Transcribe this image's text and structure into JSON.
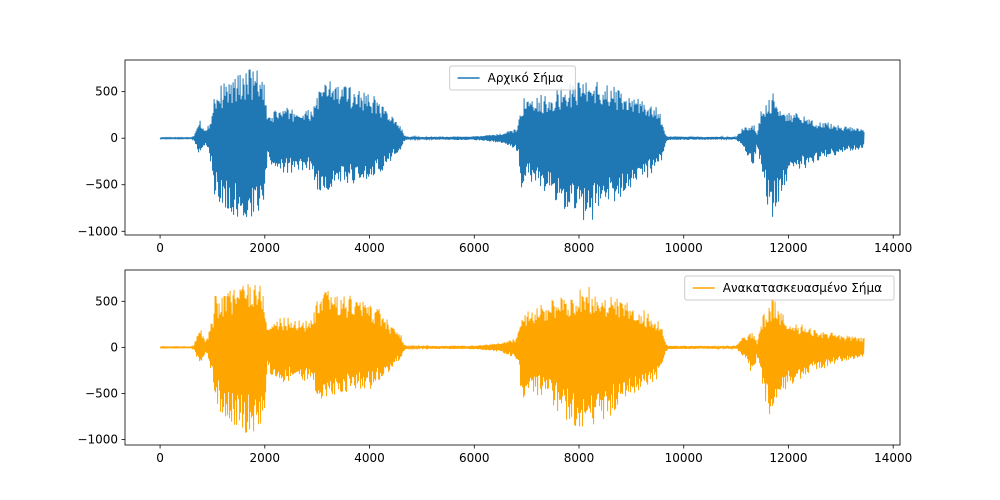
{
  "chart_data": [
    {
      "type": "line",
      "xlim": [
        -670,
        14130
      ],
      "ylim": [
        -1040,
        840
      ],
      "xticks": [
        0,
        2000,
        4000,
        6000,
        8000,
        10000,
        12000,
        14000
      ],
      "yticks": [
        -1000,
        -500,
        0,
        500
      ],
      "legend_position": "top-center",
      "series": [
        {
          "name": "Αρχικό Σήμα",
          "color": "#1f77b4",
          "envelope": {
            "x": [
              0,
              600,
              650,
              700,
              750,
              800,
              850,
              900,
              1000,
              1050,
              1100,
              1200,
              1400,
              1600,
              1800,
              1900,
              2000,
              2050,
              2100,
              2200,
              2400,
              2600,
              2900,
              3000,
              3100,
              3200,
              3300,
              3400,
              3600,
              3800,
              4000,
              4200,
              4400,
              4500,
              4600,
              4650,
              4700,
              4800,
              5000,
              5500,
              6000,
              6200,
              6500,
              6800,
              6850,
              6900,
              6950,
              7000,
              7200,
              7500,
              7800,
              8000,
              8200,
              8500,
              8800,
              9000,
              9200,
              9400,
              9500,
              9600,
              9650,
              9700,
              10000,
              10500,
              11000,
              11100,
              11200,
              11300,
              11350,
              11400,
              11500,
              11600,
              11700,
              11800,
              12000,
              12500,
              13000,
              13450
            ],
            "upper": [
              6,
              6,
              30,
              150,
              230,
              170,
              90,
              100,
              320,
              580,
              520,
              600,
              650,
              740,
              750,
              720,
              560,
              200,
              260,
              320,
              330,
              310,
              300,
              520,
              550,
              660,
              640,
              580,
              570,
              550,
              490,
              410,
              260,
              190,
              140,
              40,
              20,
              10,
              15,
              18,
              20,
              30,
              50,
              100,
              200,
              330,
              480,
              400,
              450,
              520,
              580,
              640,
              660,
              600,
              520,
              460,
              420,
              350,
              330,
              200,
              50,
              20,
              18,
              15,
              15,
              100,
              120,
              170,
              140,
              50,
              360,
              380,
              520,
              420,
              300,
              200,
              140,
              100
            ],
            "lower": [
              -6,
              -6,
              -30,
              -120,
              -200,
              -150,
              -80,
              -90,
              -350,
              -680,
              -620,
              -800,
              -850,
              -940,
              -900,
              -850,
              -650,
              -210,
              -300,
              -370,
              -380,
              -370,
              -360,
              -560,
              -590,
              -560,
              -560,
              -500,
              -500,
              -480,
              -460,
              -380,
              -250,
              -180,
              -130,
              -40,
              -20,
              -10,
              -15,
              -18,
              -20,
              -30,
              -50,
              -120,
              -220,
              -580,
              -560,
              -460,
              -520,
              -640,
              -820,
              -900,
              -900,
              -800,
              -640,
              -520,
              -480,
              -380,
              -350,
              -240,
              -60,
              -20,
              -18,
              -15,
              -15,
              -70,
              -160,
              -300,
              -260,
              -80,
              -400,
              -720,
              -860,
              -700,
              -420,
              -270,
              -160,
              -110
            ]
          }
        }
      ]
    },
    {
      "type": "line",
      "xlim": [
        -670,
        14130
      ],
      "ylim": [
        -1060,
        840
      ],
      "xticks": [
        0,
        2000,
        4000,
        6000,
        8000,
        10000,
        12000,
        14000
      ],
      "yticks": [
        -1000,
        -500,
        0,
        500
      ],
      "legend_position": "top-right",
      "series": [
        {
          "name": "Ανακατασκευασμένο Σήμα",
          "color": "#ffa500",
          "envelope": {
            "x": [
              0,
              600,
              650,
              700,
              750,
              800,
              850,
              900,
              1000,
              1050,
              1100,
              1200,
              1400,
              1600,
              1800,
              1900,
              2000,
              2050,
              2100,
              2200,
              2400,
              2600,
              2900,
              3000,
              3100,
              3200,
              3300,
              3400,
              3600,
              3800,
              4000,
              4200,
              4400,
              4500,
              4600,
              4650,
              4700,
              4800,
              5000,
              5500,
              6000,
              6200,
              6500,
              6800,
              6850,
              6900,
              6950,
              7000,
              7200,
              7500,
              7800,
              8000,
              8200,
              8500,
              8800,
              9000,
              9200,
              9400,
              9500,
              9600,
              9650,
              9700,
              10000,
              10500,
              11000,
              11100,
              11200,
              11300,
              11350,
              11400,
              11500,
              11600,
              11700,
              11800,
              12000,
              12500,
              13000,
              13450
            ],
            "upper": [
              6,
              6,
              30,
              150,
              230,
              170,
              90,
              100,
              320,
              580,
              520,
              600,
              650,
              740,
              750,
              720,
              560,
              200,
              260,
              320,
              330,
              310,
              300,
              520,
              550,
              660,
              640,
              580,
              570,
              550,
              490,
              410,
              260,
              190,
              140,
              40,
              20,
              10,
              15,
              18,
              20,
              30,
              50,
              100,
              200,
              330,
              480,
              400,
              450,
              520,
              580,
              640,
              660,
              600,
              520,
              460,
              420,
              350,
              330,
              200,
              50,
              20,
              18,
              15,
              15,
              100,
              120,
              170,
              140,
              50,
              360,
              380,
              560,
              420,
              300,
              200,
              140,
              100
            ],
            "lower": [
              -6,
              -6,
              -30,
              -120,
              -200,
              -150,
              -80,
              -90,
              -350,
              -680,
              -620,
              -800,
              -850,
              -940,
              -920,
              -880,
              -650,
              -210,
              -300,
              -370,
              -380,
              -370,
              -360,
              -560,
              -590,
              -560,
              -560,
              -500,
              -500,
              -480,
              -460,
              -380,
              -250,
              -180,
              -130,
              -40,
              -20,
              -10,
              -15,
              -18,
              -20,
              -30,
              -50,
              -120,
              -220,
              -580,
              -560,
              -460,
              -520,
              -640,
              -820,
              -960,
              -900,
              -800,
              -640,
              -520,
              -480,
              -380,
              -350,
              -240,
              -60,
              -20,
              -18,
              -15,
              -15,
              -70,
              -160,
              -300,
              -260,
              -80,
              -400,
              -720,
              -860,
              -700,
              -420,
              -270,
              -160,
              -110
            ]
          }
        }
      ]
    }
  ]
}
